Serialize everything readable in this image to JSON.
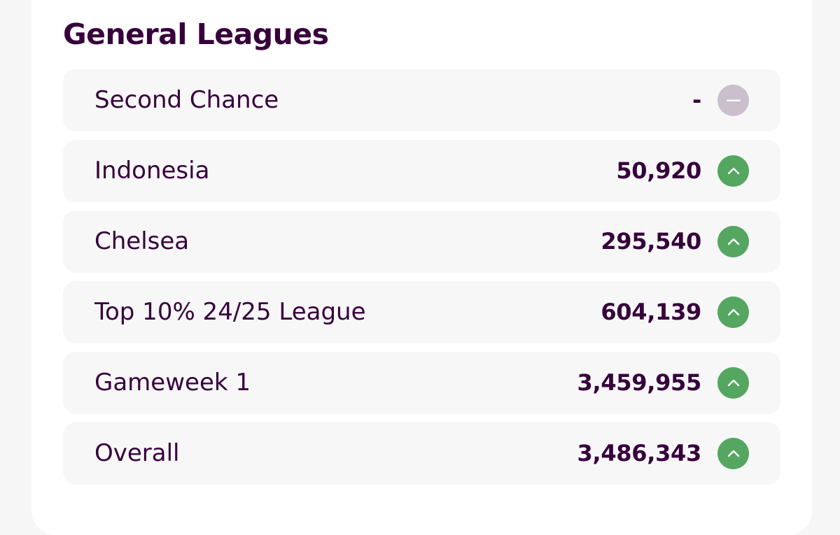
{
  "section": {
    "title": "General Leagues"
  },
  "colors": {
    "title": "#37003c",
    "up": "#55a660",
    "same": "#c9bfcd",
    "row_bg": "#f7f7f8"
  },
  "leagues": [
    {
      "name": "Second Chance",
      "rank": "-",
      "movement": "same",
      "icon": "minus-icon"
    },
    {
      "name": "Indonesia",
      "rank": "50,920",
      "movement": "up",
      "icon": "chevron-up-icon"
    },
    {
      "name": "Chelsea",
      "rank": "295,540",
      "movement": "up",
      "icon": "chevron-up-icon"
    },
    {
      "name": "Top 10% 24/25 League",
      "rank": "604,139",
      "movement": "up",
      "icon": "chevron-up-icon"
    },
    {
      "name": "Gameweek 1",
      "rank": "3,459,955",
      "movement": "up",
      "icon": "chevron-up-icon"
    },
    {
      "name": "Overall",
      "rank": "3,486,343",
      "movement": "up",
      "icon": "chevron-up-icon"
    }
  ]
}
